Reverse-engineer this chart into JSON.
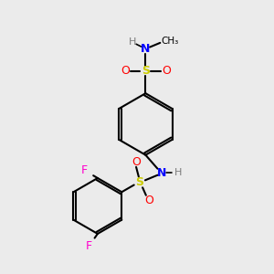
{
  "background_color": "#ebebeb",
  "C": "#000000",
  "H": "#7a7a7a",
  "N": "#0000ff",
  "O": "#ff0000",
  "S": "#cccc00",
  "F": "#ff00cc",
  "bond_lw": 1.5,
  "figsize": [
    3.0,
    3.0
  ],
  "dpi": 100
}
